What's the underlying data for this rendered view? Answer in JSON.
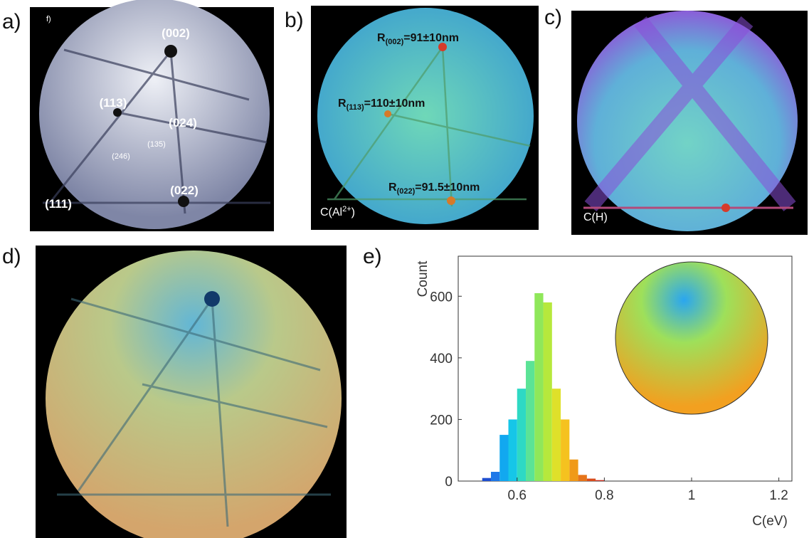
{
  "panels": {
    "a": {
      "label": "a)",
      "corner": "f)",
      "hkl": [
        "(002)",
        "(113)",
        "(024)",
        "(246)",
        "(135)",
        "(111)",
        "(022)"
      ]
    },
    "b": {
      "label": "b)",
      "radii": [
        {
          "main": "R",
          "sub": "(002)",
          "rest": "=91±10nm"
        },
        {
          "main": "R",
          "sub": "(113)",
          "rest": "=110±10nm"
        },
        {
          "main": "R",
          "sub": "(022)",
          "rest": "=91.5±10nm"
        }
      ],
      "caption": {
        "main": "C(Al",
        "sup": "2+",
        "rest": ")"
      }
    },
    "c": {
      "label": "c)",
      "caption": "C(H)"
    },
    "d": {
      "label": "d)"
    },
    "e": {
      "label": "e)"
    }
  },
  "chart_data": {
    "type": "histogram",
    "xlabel": "C(eV)",
    "ylabel": "Count",
    "bins": [
      0.52,
      0.54,
      0.56,
      0.58,
      0.6,
      0.62,
      0.64,
      0.66,
      0.68,
      0.7,
      0.72,
      0.74,
      0.76,
      0.78,
      0.8
    ],
    "values": [
      10,
      30,
      150,
      200,
      300,
      390,
      610,
      580,
      300,
      200,
      70,
      20,
      8,
      3
    ],
    "colors": [
      "#1f4fd0",
      "#1e78e8",
      "#12a8f0",
      "#16c6e8",
      "#2ed9c4",
      "#5be396",
      "#8fe75a",
      "#b6e83c",
      "#dfe02a",
      "#f5c21f",
      "#f09a18",
      "#e6741a",
      "#d84c1c",
      "#c82a1a"
    ],
    "xlim": [
      0.465,
      1.23
    ],
    "ylim": [
      0,
      730
    ],
    "xticks": [
      0.6,
      0.8,
      1,
      1.2
    ],
    "yticks": [
      0,
      200,
      400,
      600
    ]
  }
}
